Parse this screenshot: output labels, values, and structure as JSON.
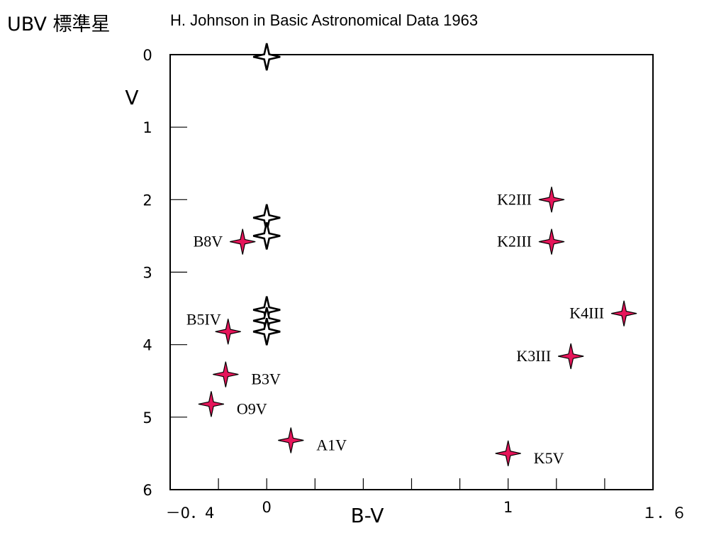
{
  "header": {
    "title": "UBV 標準星",
    "subtitle": "H. Johnson  in Basic Astronomical Data 1963"
  },
  "colors": {
    "marker_fill": "#e6155a",
    "marker_outline": "#000000",
    "frame": "#000000"
  },
  "chart_data": {
    "type": "scatter",
    "title": "UBV 標準星",
    "xlabel": "B-V",
    "ylabel": "V",
    "xlim": [
      -0.4,
      1.6
    ],
    "ylim": [
      0,
      6
    ],
    "y_inverted": true,
    "grid": false,
    "x_ticks": [
      -0.4,
      -0.2,
      0,
      0.2,
      0.4,
      0.6,
      0.8,
      1.0,
      1.2,
      1.4,
      1.6
    ],
    "x_tick_labels": [
      {
        "value": -0.4,
        "label": "－0．4"
      },
      {
        "value": 0,
        "label": "0"
      },
      {
        "value": 1,
        "label": "1"
      },
      {
        "value": 1.6,
        "label": "１．６"
      }
    ],
    "y_ticks": [
      0,
      1,
      2,
      3,
      4,
      5,
      6
    ],
    "y_tick_labels": [
      "0",
      "1",
      "2",
      "3",
      "4",
      "5",
      "6"
    ],
    "series": [
      {
        "marker": "open-four-point-star",
        "points": [
          {
            "x": 0.0,
            "y": 0.03,
            "label": ""
          },
          {
            "x": 0.0,
            "y": 2.25,
            "label": ""
          },
          {
            "x": 0.0,
            "y": 2.5,
            "label": ""
          },
          {
            "x": 0.0,
            "y": 3.52,
            "label": ""
          },
          {
            "x": 0.0,
            "y": 3.67,
            "label": ""
          },
          {
            "x": 0.0,
            "y": 3.82,
            "label": ""
          }
        ]
      },
      {
        "marker": "filled-four-point-star",
        "points": [
          {
            "x": 1.18,
            "y": 2.0,
            "label": "K2III",
            "label_side": "left"
          },
          {
            "x": 1.18,
            "y": 2.58,
            "label": "K2III",
            "label_side": "left"
          },
          {
            "x": -0.1,
            "y": 2.58,
            "label": "B8V",
            "label_side": "left"
          },
          {
            "x": 1.48,
            "y": 3.57,
            "label": "K4III",
            "label_side": "left"
          },
          {
            "x": -0.16,
            "y": 3.82,
            "label": "B5IV",
            "label_side": "above-left"
          },
          {
            "x": 1.26,
            "y": 4.16,
            "label": "K3III",
            "label_side": "left"
          },
          {
            "x": -0.17,
            "y": 4.41,
            "label": "B3V",
            "label_side": "right"
          },
          {
            "x": -0.23,
            "y": 4.82,
            "label": "O9V",
            "label_side": "right"
          },
          {
            "x": 0.1,
            "y": 5.32,
            "label": "A1V",
            "label_side": "right"
          },
          {
            "x": 1.0,
            "y": 5.5,
            "label": "K5V",
            "label_side": "right"
          }
        ]
      }
    ]
  }
}
